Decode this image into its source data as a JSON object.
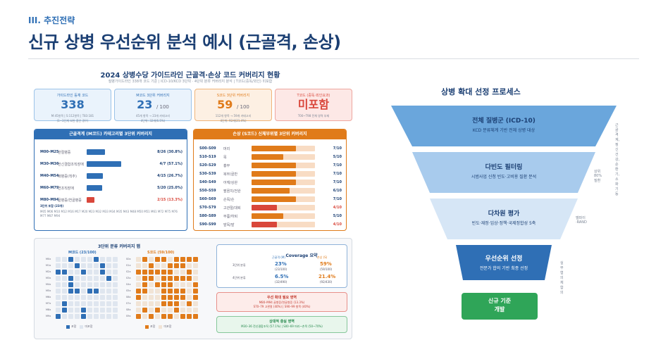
{
  "header": {
    "section": "III. 추진전략",
    "title": "신규 상병 우선순위 분석 예시 (근골격, 손상)"
  },
  "left": {
    "title": "2024 상병수당 가이드라인 근골격·손상 코드 커버리지 현황",
    "subtitle": "질병가이드라인 338개 코드 기준 | ICD-10/KCD 3단위 · 4단위 분류 커버리지 분석 | T코드(중독/외인) 미포함",
    "stats": [
      {
        "head": "가이드라인 등재 코드",
        "value": "338",
        "small": "",
        "note1": "M:45항목 | S:112항목 | T83:181",
        "note2": "(1~3단계 보완 중인 경우)",
        "color": "#2f6fb5",
        "bg": "#eaf3fc",
        "border": "#9cc3e8"
      },
      {
        "head": "M코드 3단위 커버리지",
        "value": "23",
        "small": "/ 100",
        "note1": "45개 항목 → 23개 카테고리",
        "note2": "4단위: 32개(6.5%)",
        "color": "#2f6fb5",
        "bg": "#eaf3fc",
        "border": "#9cc3e8"
      },
      {
        "head": "S코드 3단위 커버리지",
        "value": "59",
        "small": "/ 100",
        "note1": "112개 항목 → 59개 카테고리",
        "note2": "4단위: 92개(21.4%)",
        "color": "#e07b1a",
        "bg": "#fdf0e3",
        "border": "#efb47a"
      },
      {
        "head": "T코드 (중독·외인요과)",
        "value": "미포함",
        "small": "",
        "note1": "T00~T98 전체 영역 부재",
        "note2": "",
        "color": "#d9473b",
        "bg": "#fde8e6",
        "border": "#eea69f"
      }
    ],
    "m_panel": {
      "header": "근골격계 (M코드) 카테고리별 3단위 커버리지",
      "rows": [
        {
          "code": "M00–M25",
          "name": "관절병증",
          "value": "8/26 (30.8%)",
          "frac": 0.308,
          "color": "#2f6fb5"
        },
        {
          "code": "M30–M36",
          "name": "전신결합조직장애",
          "value": "4/7 (57.1%)",
          "frac": 0.571,
          "color": "#2f6fb5"
        },
        {
          "code": "M40–M54",
          "name": "배병증(척추)",
          "value": "4/15 (26.7%)",
          "frac": 0.267,
          "color": "#2f6fb5"
        },
        {
          "code": "M60–M79",
          "name": "연조직장애",
          "value": "5/20 (25.0%)",
          "frac": 0.25,
          "color": "#2f6fb5"
        },
        {
          "code": "M80–M94",
          "name": "골병증/연골병증",
          "value": "2/15 (13.3%)",
          "frac": 0.133,
          "color": "#d9473b"
        }
      ],
      "foot_title": "3단위 포함 (23개)",
      "foot_text": "M05 M06 M10 M12 M16 M17 M20 M23 M32 M33 M34 M35 M43 M48 M50 M51 M61 M72 M75 M76 M77 M87 M94"
    },
    "s_panel": {
      "header": "손상 (S코드) 신체부위별 3단위 커버리지",
      "rows": [
        {
          "code": "S00–S09",
          "name": "머리",
          "value": "7/10",
          "frac": 0.7,
          "color": "#e07b1a"
        },
        {
          "code": "S10–S19",
          "name": "목",
          "value": "5/10",
          "frac": 0.5,
          "color": "#e07b1a"
        },
        {
          "code": "S20–S29",
          "name": "흉부",
          "value": "7/10",
          "frac": 0.7,
          "color": "#e07b1a"
        },
        {
          "code": "S30–S39",
          "name": "복부/골반",
          "value": "7/10",
          "frac": 0.7,
          "color": "#e07b1a"
        },
        {
          "code": "S40–S49",
          "name": "어깨/상완",
          "value": "7/10",
          "frac": 0.7,
          "color": "#e07b1a"
        },
        {
          "code": "S50–S59",
          "name": "팔꿈치/전완",
          "value": "6/10",
          "frac": 0.6,
          "color": "#e07b1a"
        },
        {
          "code": "S60–S69",
          "name": "손목/손",
          "value": "7/10",
          "frac": 0.7,
          "color": "#e07b1a"
        },
        {
          "code": "S70–S79",
          "name": "고관절/대퇴",
          "value": "4/10",
          "frac": 0.4,
          "color": "#d9473b"
        },
        {
          "code": "S80–S89",
          "name": "무릎/하퇴",
          "value": "5/10",
          "frac": 0.5,
          "color": "#e07b1a"
        },
        {
          "code": "S90–S99",
          "name": "발목/발",
          "value": "4/10",
          "frac": 0.4,
          "color": "#d9473b"
        }
      ]
    },
    "heatmap": {
      "title": "3단위 분류 커버리지 맵",
      "m_label": "M코드 (23/100)",
      "s_label": "S코드 (59/100)",
      "m_rows": [
        "M0x",
        "M1x",
        "M2x",
        "M3x",
        "M4x",
        "M5x",
        "M6x",
        "M7x",
        "M8x",
        "M9x"
      ],
      "s_rows": [
        "S0x",
        "S1x",
        "S2x",
        "S3x",
        "S4x",
        "S5x",
        "S6x",
        "S7x",
        "S8x",
        "S9x"
      ],
      "legend_in": "포함",
      "legend_out": "미포함"
    },
    "coverage": {
      "title": "Coverage 요약",
      "col_m": "근골격 (M)",
      "col_s": "손상 (S)",
      "row3": "3단위 분류",
      "row4": "4단위 분류",
      "m3": "23%",
      "m3n": "(23/100)",
      "s3": "59%",
      "s3n": "(59/100)",
      "m4": "6.5%",
      "m4n": "(32/490)",
      "s4": "21.4%",
      "s4n": "(92/430)"
    },
    "need": {
      "title": "우선 확대 필요 영역",
      "line1": "M80–M94 골병증/연골병증 (13.3%)",
      "line2": "S70–79 고관절 (40%) | S90–99 발목 (40%)"
    },
    "good": {
      "title": "상대적 충실 영역",
      "line1": "M30–36 전신결합조직 (57.1%) | S00–69 머리~손목 (50~70%)"
    }
  },
  "right": {
    "title": "상병 확대 선정 프로세스",
    "stages": [
      {
        "title": "전체 질병군 (ICD-10)",
        "desc": "KCD 분류체계 기반 전체 상병 대상",
        "side": "근골격계, 정신건강,\n순환기, 소화기 등"
      },
      {
        "title": "다빈도 필터링",
        "desc": "시범사업 신청 빈도·고비용 질환 분석",
        "side": "상위 80% 질환"
      },
      {
        "title": "다차원 평가",
        "desc": "빈도·재정·임상·정책·국제정합성 5축",
        "side": "델파이·RAND"
      },
      {
        "title": "우선순위 선정",
        "desc": "전문가 합의 기반 최종 선정",
        "side": "실무협의체 합의"
      }
    ],
    "final": "신규 기준\n개발"
  }
}
